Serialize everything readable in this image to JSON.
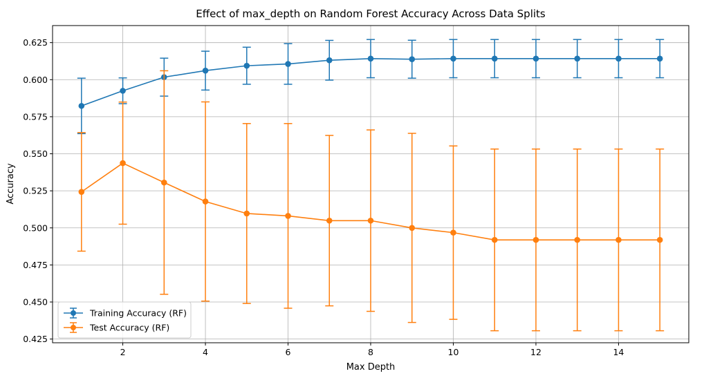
{
  "chart_data": {
    "type": "line",
    "title": "Effect of max_depth on Random Forest Accuracy Across Data Splits",
    "xlabel": "Max Depth",
    "ylabel": "Accuracy",
    "xlim": [
      0.3,
      15.7
    ],
    "ylim": [
      0.4225,
      0.6365
    ],
    "x_ticks": [
      2,
      4,
      6,
      8,
      10,
      12,
      14
    ],
    "x_tick_labels": [
      "2",
      "4",
      "6",
      "8",
      "10",
      "12",
      "14"
    ],
    "y_ticks": [
      0.425,
      0.45,
      0.475,
      0.5,
      0.525,
      0.55,
      0.575,
      0.6,
      0.625
    ],
    "y_tick_labels": [
      "0.425",
      "0.450",
      "0.475",
      "0.500",
      "0.525",
      "0.550",
      "0.575",
      "0.600",
      "0.625"
    ],
    "grid": true,
    "legend_position": "lower-left",
    "x": [
      1,
      2,
      3,
      4,
      5,
      6,
      7,
      8,
      9,
      10,
      11,
      12,
      13,
      14,
      15
    ],
    "series": [
      {
        "name": "Training Accuracy (RF)",
        "color": "#1f77b4",
        "values": [
          0.5823,
          0.5925,
          0.6017,
          0.6061,
          0.6094,
          0.6106,
          0.6131,
          0.6142,
          0.6138,
          0.6142,
          0.6142,
          0.6142,
          0.6142,
          0.6142,
          0.6142
        ],
        "error": [
          0.0187,
          0.0087,
          0.0128,
          0.0131,
          0.0125,
          0.0137,
          0.0134,
          0.0129,
          0.0128,
          0.0129,
          0.0129,
          0.0129,
          0.0129,
          0.0129,
          0.0129
        ]
      },
      {
        "name": "Test Accuracy (RF)",
        "color": "#ff7f0e",
        "values": [
          0.5243,
          0.5437,
          0.5306,
          0.5178,
          0.5097,
          0.5081,
          0.5049,
          0.5049,
          0.5,
          0.4968,
          0.4919,
          0.4919,
          0.4919,
          0.4919,
          0.4919
        ],
        "error": [
          0.04,
          0.0412,
          0.0754,
          0.0672,
          0.0607,
          0.0623,
          0.0575,
          0.0612,
          0.0638,
          0.0585,
          0.0613,
          0.0613,
          0.0613,
          0.0613,
          0.0613
        ]
      }
    ]
  }
}
